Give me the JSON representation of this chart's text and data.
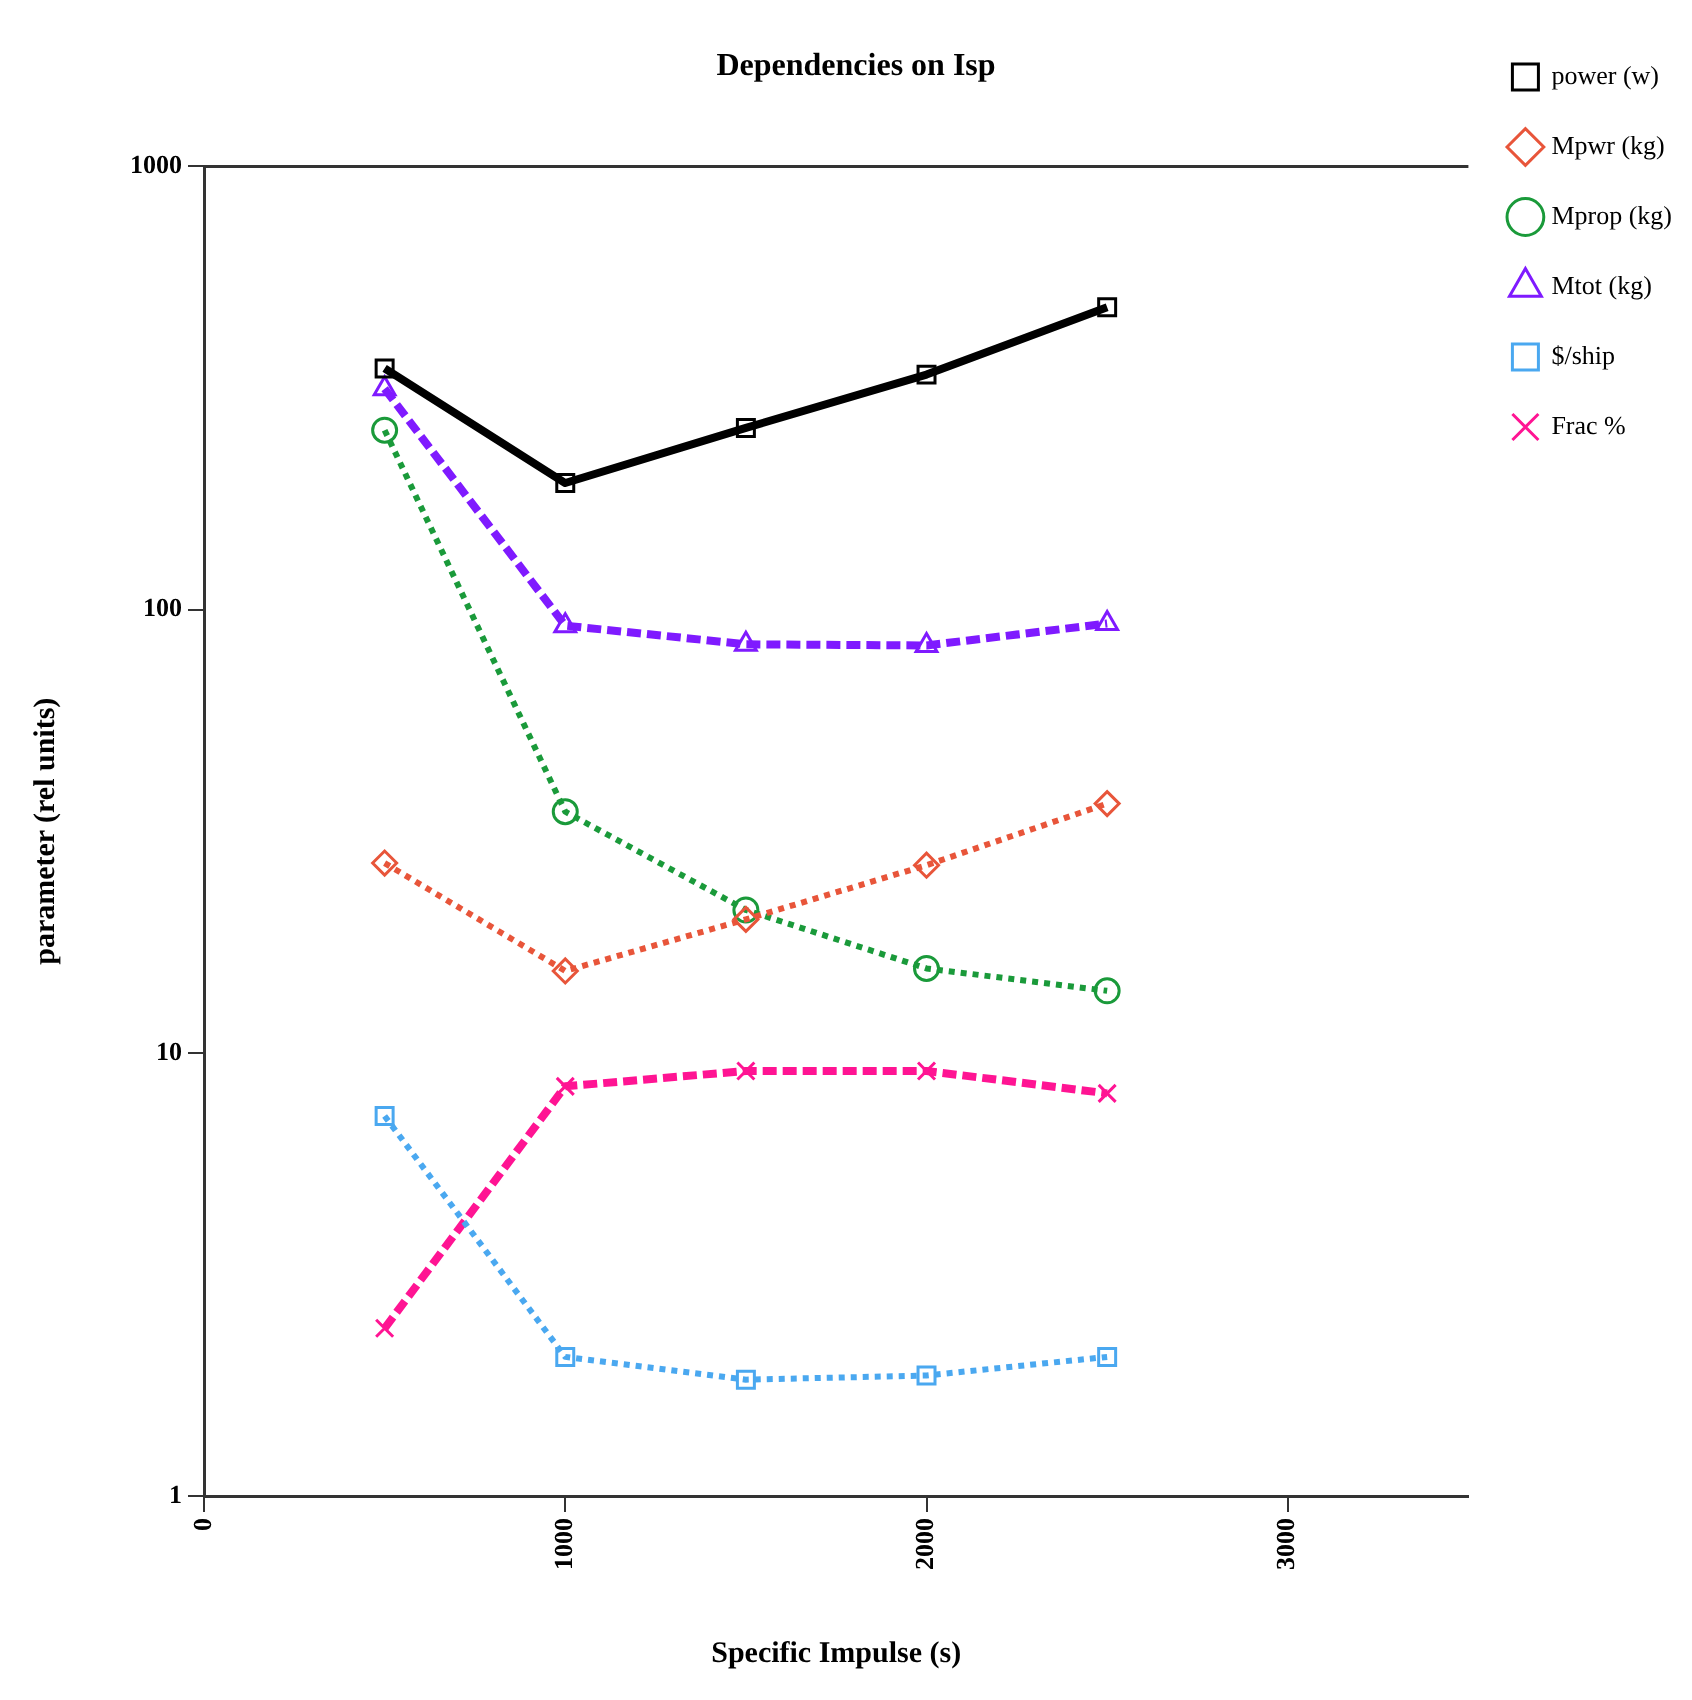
{
  "chart_data": {
    "type": "line",
    "title": "Dependencies on Isp",
    "xlabel": "Specific Impulse (s)",
    "ylabel": "parameter (rel units)",
    "x": [
      500,
      1000,
      1500,
      2000,
      2500
    ],
    "xlim": [
      0,
      3500
    ],
    "xticks": [
      0,
      1000,
      2000,
      3000
    ],
    "ylim": [
      1,
      1000
    ],
    "yticks": [
      1,
      10,
      100,
      1000
    ],
    "log": "y",
    "grid": false,
    "legend": "top right",
    "series": [
      {
        "name": "power (w)",
        "color": "#000000",
        "marker": "square",
        "line_style": "solid",
        "values": [
          350,
          193,
          257,
          339,
          481
        ]
      },
      {
        "name": "Mpwr (kg)",
        "color": "#e8553a",
        "marker": "diamond",
        "line_style": "dotted",
        "values": [
          26.8,
          15.3,
          20,
          26.5,
          36.5
        ]
      },
      {
        "name": "Mprop (kg)",
        "color": "#1a9a3a",
        "marker": "circle",
        "line_style": "dotted",
        "values": [
          254,
          35,
          21,
          15.5,
          13.8
        ]
      },
      {
        "name": "Mtot (kg)",
        "color": "#7f1aff",
        "marker": "triangle",
        "line_style": "dashed",
        "values": [
          315,
          92,
          83.5,
          83,
          93
        ]
      },
      {
        "name": "$/ship",
        "color": "#4aa8f0",
        "marker": "square",
        "line_style": "dotted",
        "values": [
          7.2,
          2.06,
          1.83,
          1.87,
          2.06
        ]
      },
      {
        "name": "Frac %",
        "color": "#ff1493",
        "marker": "cross",
        "line_style": "dashed",
        "values": [
          2.39,
          8.4,
          9.1,
          9.1,
          8.1
        ]
      }
    ]
  }
}
